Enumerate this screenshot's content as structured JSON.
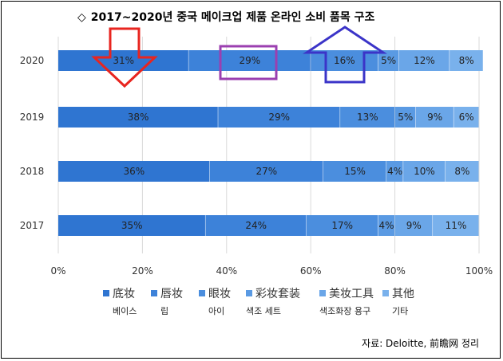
{
  "title_mark": "◇",
  "title": "2017~2020년 중국 메이크업 제품 온라인 소비 품목 구조",
  "source": "자료: Deloitte, 前瞻网 정리",
  "chart_data": {
    "type": "bar",
    "orientation": "horizontal",
    "stacked": true,
    "percent": true,
    "categories": [
      "2020",
      "2019",
      "2018",
      "2017"
    ],
    "series": [
      {
        "name": "底妆",
        "name_ko": "베이스",
        "values": [
          31,
          38,
          36,
          35
        ],
        "color": "#2f75d1"
      },
      {
        "name": "唇妆",
        "name_ko": "립",
        "values": [
          29,
          29,
          27,
          24
        ],
        "color": "#3d82d9"
      },
      {
        "name": "眼妆",
        "name_ko": "아이",
        "values": [
          16,
          13,
          15,
          17
        ],
        "color": "#4b8ede"
      },
      {
        "name": "彩妆套装",
        "name_ko": "색조 세트",
        "values": [
          5,
          5,
          4,
          4
        ],
        "color": "#5a9ae3"
      },
      {
        "name": "美妆工具",
        "name_ko": "색조화장 용구",
        "values": [
          12,
          9,
          10,
          9
        ],
        "color": "#6aa6e8"
      },
      {
        "name": "其他",
        "name_ko": "기타",
        "values": [
          8,
          6,
          8,
          11
        ],
        "color": "#79b1ec"
      }
    ],
    "data_labels": [
      [
        "31%",
        "29%",
        "16%",
        "5%",
        "12%",
        "8%"
      ],
      [
        "38%",
        "29%",
        "13%",
        "5%",
        "9%",
        "6%"
      ],
      [
        "36%",
        "27%",
        "15%",
        "4%",
        "10%",
        "8%"
      ],
      [
        "35%",
        "24%",
        "17%",
        "4%",
        "9%",
        "11%"
      ]
    ],
    "xticks": [
      "0%",
      "20%",
      "40%",
      "60%",
      "80%",
      "100%"
    ],
    "xlim": [
      0,
      100
    ],
    "grid": true,
    "legend_position": "bottom",
    "annotations": [
      {
        "type": "arrow-down",
        "color": "#e8251f",
        "near": "2020 底妆"
      },
      {
        "type": "rectangle",
        "color": "#9b3fb0",
        "near": "2020 唇妆"
      },
      {
        "type": "arrow-up",
        "color": "#3b34c8",
        "near": "2020 眼妆"
      }
    ]
  }
}
